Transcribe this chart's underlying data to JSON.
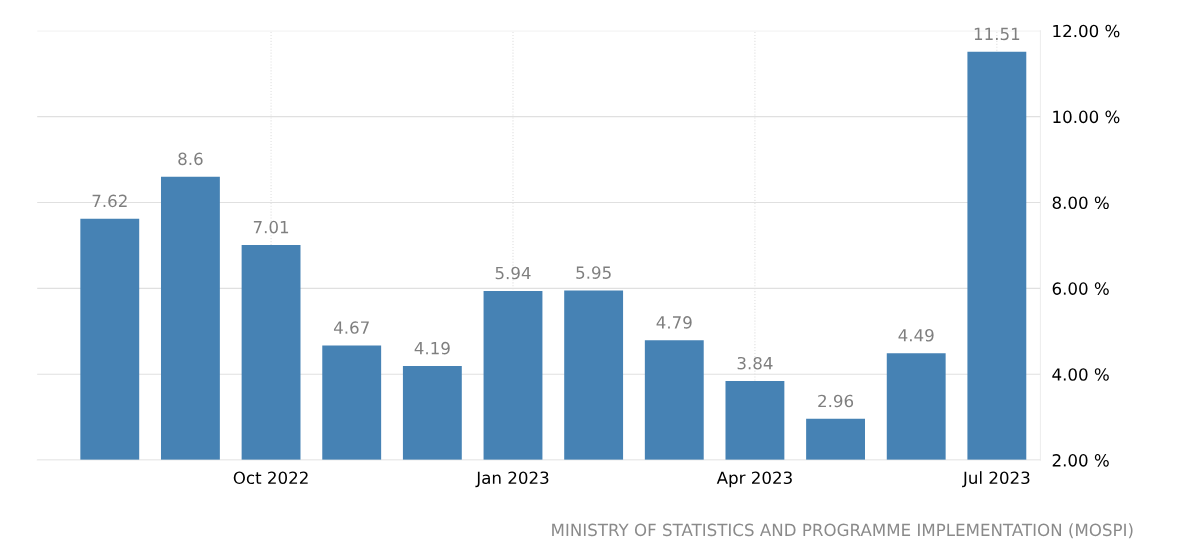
{
  "chart_data": {
    "type": "bar",
    "categories": [
      null,
      null,
      "Oct 2022",
      null,
      null,
      "Jan 2023",
      null,
      null,
      "Apr 2023",
      null,
      null,
      "Jul 2023"
    ],
    "values": [
      7.62,
      8.6,
      7.01,
      4.67,
      4.19,
      5.94,
      5.95,
      4.79,
      3.84,
      2.96,
      4.49,
      11.51
    ],
    "color": "#4682b4",
    "data_labels": true,
    "ylim": [
      2,
      12
    ],
    "yticks": [
      {
        "value": 2,
        "label": "2.00 %"
      },
      {
        "value": 4,
        "label": "4.00 %"
      },
      {
        "value": 6,
        "label": "6.00 %"
      },
      {
        "value": 8,
        "label": "8.00 %"
      },
      {
        "value": 10,
        "label": "10.00 %"
      },
      {
        "value": 12,
        "label": "12.00 %"
      }
    ],
    "grid": true,
    "annotations": [
      "MINISTRY OF STATISTICS AND PROGRAMME IMPLEMENTATION (MOSPI)"
    ]
  }
}
